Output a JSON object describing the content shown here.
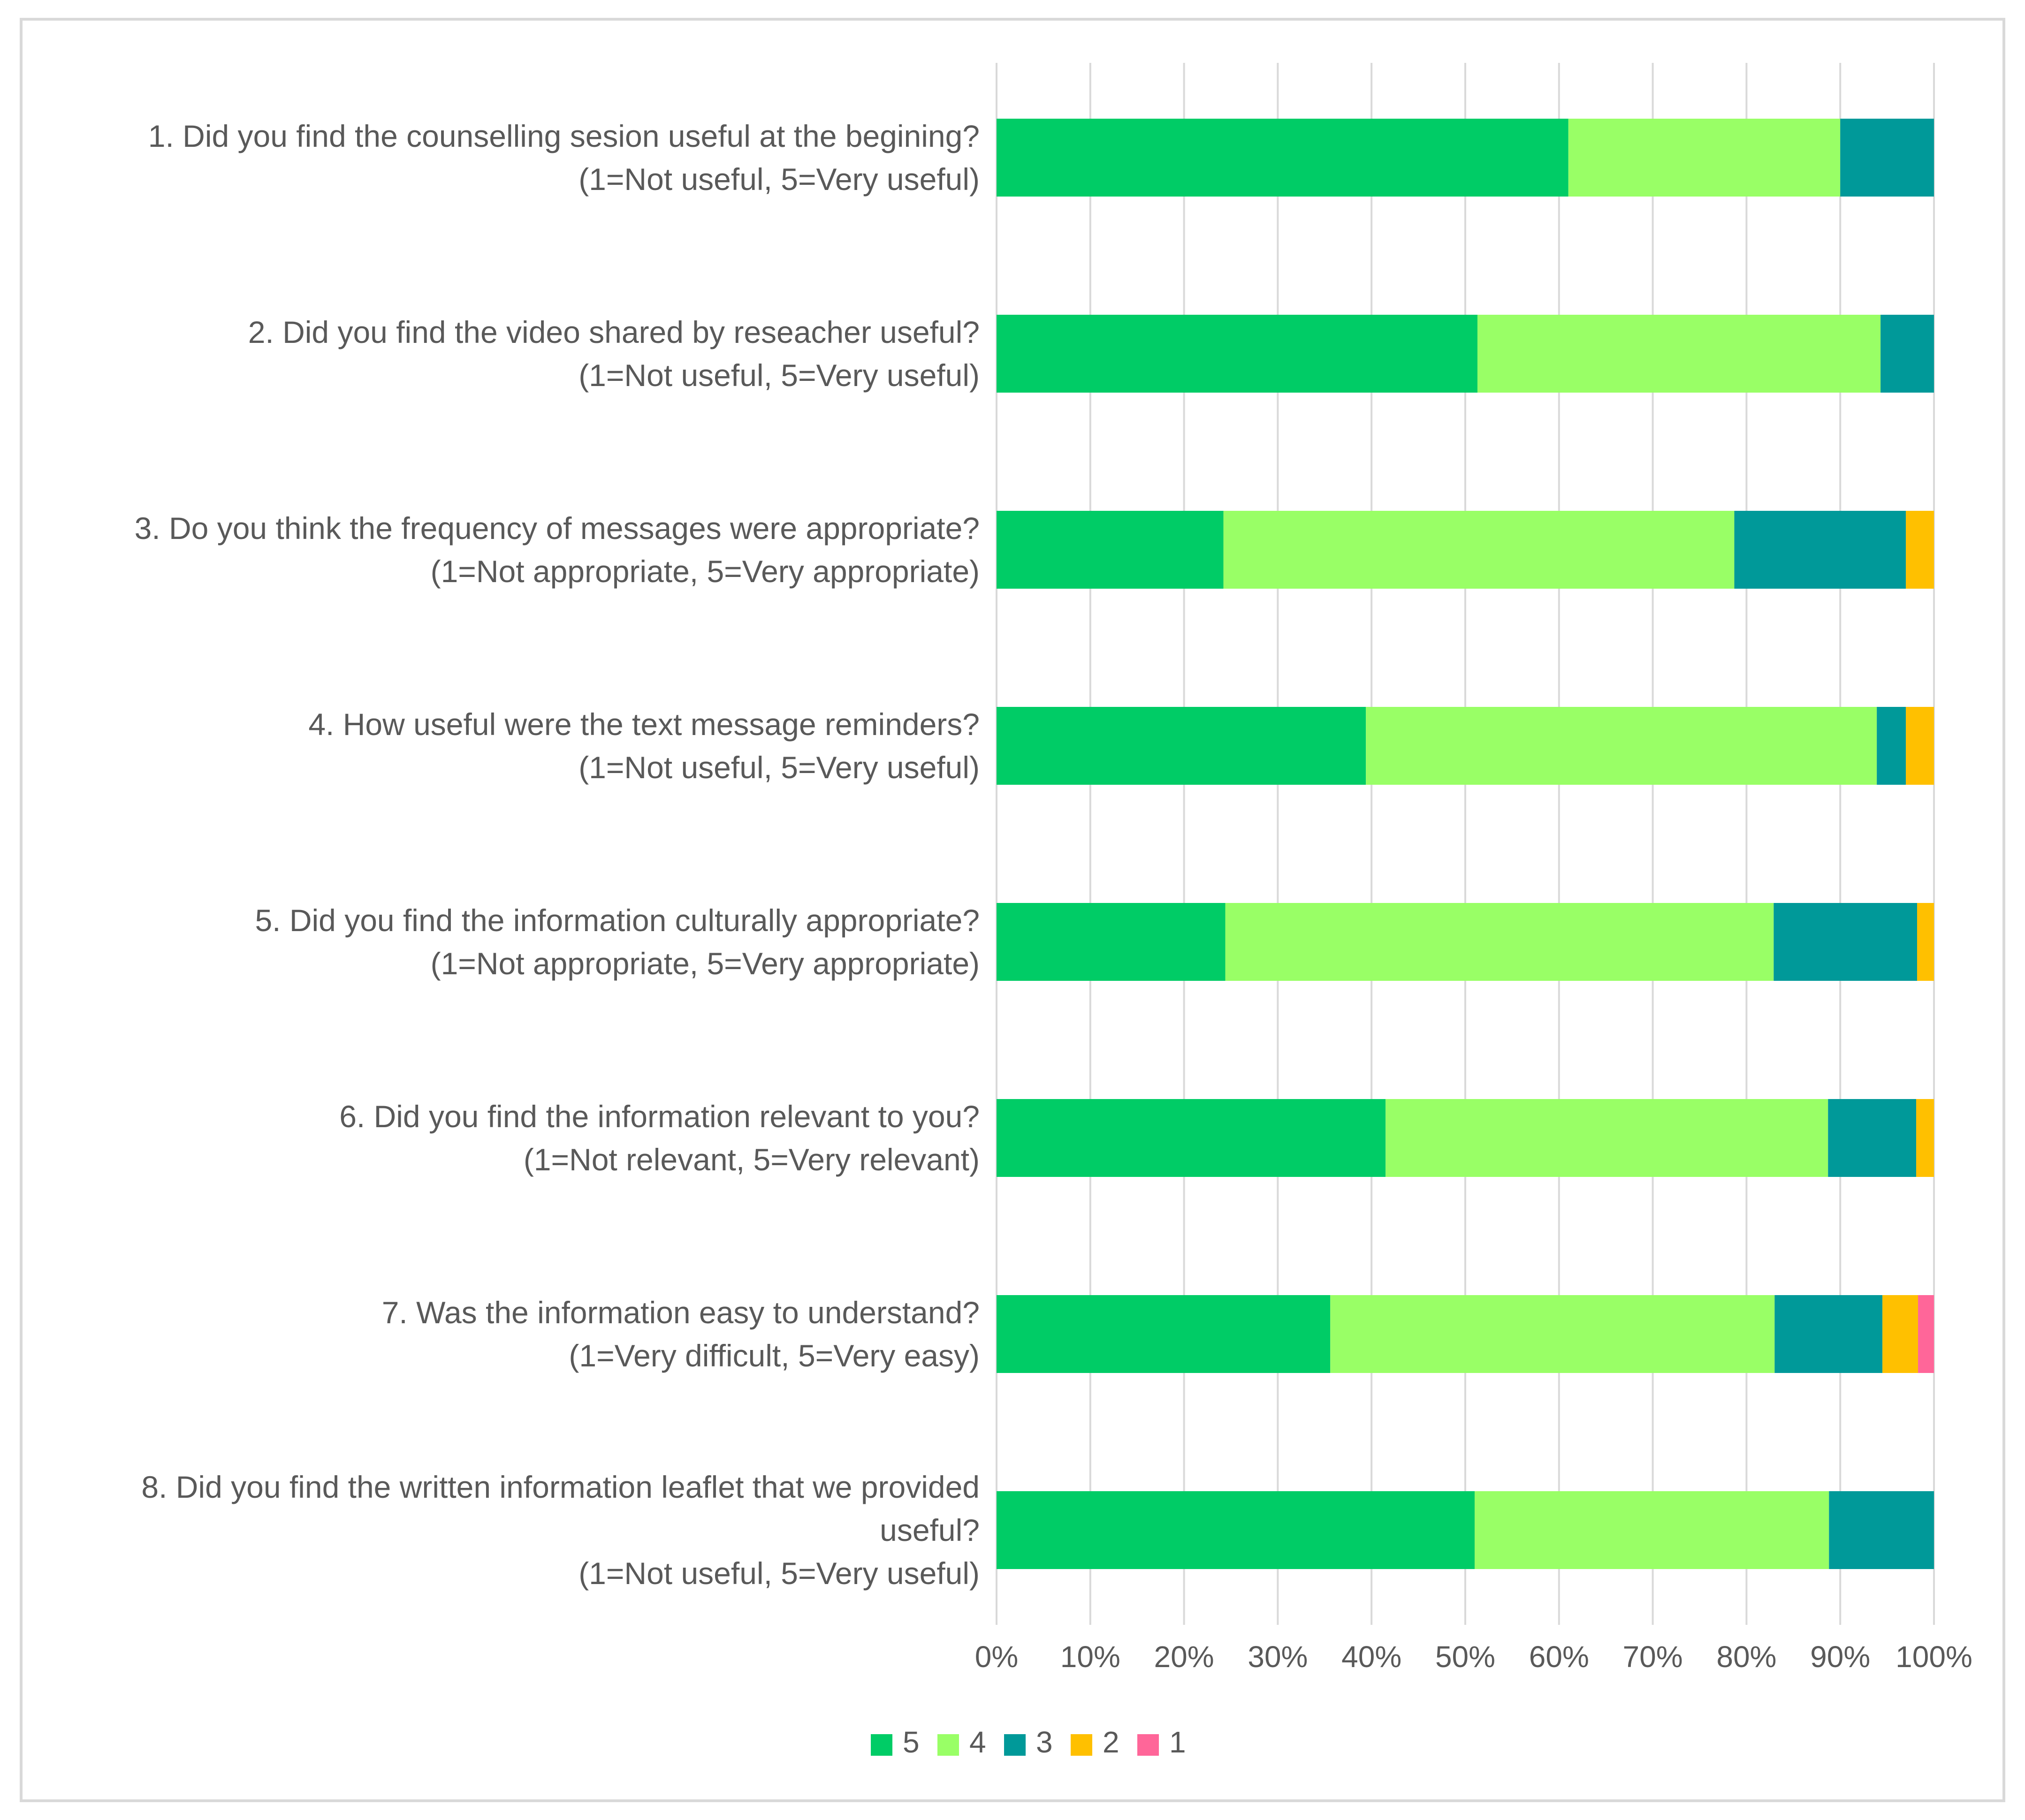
{
  "chart_data": {
    "type": "bar",
    "orientation": "horizontal",
    "stacked": true,
    "percent": true,
    "title": "",
    "xlabel": "",
    "ylabel": "",
    "xlim": [
      0,
      100
    ],
    "grid": true,
    "legend_position": "bottom",
    "x_ticks": [
      "0%",
      "10%",
      "20%",
      "30%",
      "40%",
      "50%",
      "60%",
      "70%",
      "80%",
      "90%",
      "100%"
    ],
    "categories": [
      [
        "1. Did you find the counselling sesion useful at the begining?",
        "(1=Not useful, 5=Very useful)"
      ],
      [
        "2. Did you find the video shared by reseacher useful?",
        "(1=Not useful, 5=Very useful)"
      ],
      [
        "3. Do you think the frequency of messages were appropriate?",
        "(1=Not appropriate, 5=Very appropriate)"
      ],
      [
        "4. How useful were the text message reminders?",
        "(1=Not useful, 5=Very useful)"
      ],
      [
        "5. Did you find the information culturally appropriate?",
        "(1=Not appropriate, 5=Very appropriate)"
      ],
      [
        "6. Did you find the information relevant to you?",
        "(1=Not relevant, 5=Very relevant)"
      ],
      [
        "7. Was the information easy to understand?",
        "(1=Very difficult, 5=Very easy)"
      ],
      [
        "8. Did you find the written information leaflet that we provided",
        "useful?",
        "(1=Not useful, 5=Very useful)"
      ]
    ],
    "series": [
      {
        "name": "5",
        "color": "#00cc66",
        "values": [
          61,
          51.3,
          24.2,
          39.4,
          24.4,
          41.5,
          35.6,
          51
        ]
      },
      {
        "name": "4",
        "color": "#99ff66",
        "values": [
          29,
          43,
          54.5,
          54.5,
          58.5,
          47.2,
          47.4,
          37.8
        ]
      },
      {
        "name": "3",
        "color": "#009999",
        "values": [
          10,
          5.7,
          18.3,
          3.1,
          15.3,
          9.4,
          11.5,
          11.2
        ]
      },
      {
        "name": "2",
        "color": "#ffc000",
        "values": [
          0,
          0,
          3,
          3,
          1.8,
          1.9,
          3.8,
          0
        ]
      },
      {
        "name": "1",
        "color": "#ff6699",
        "values": [
          0,
          0,
          0,
          0,
          0,
          0,
          1.7,
          0
        ]
      }
    ]
  }
}
